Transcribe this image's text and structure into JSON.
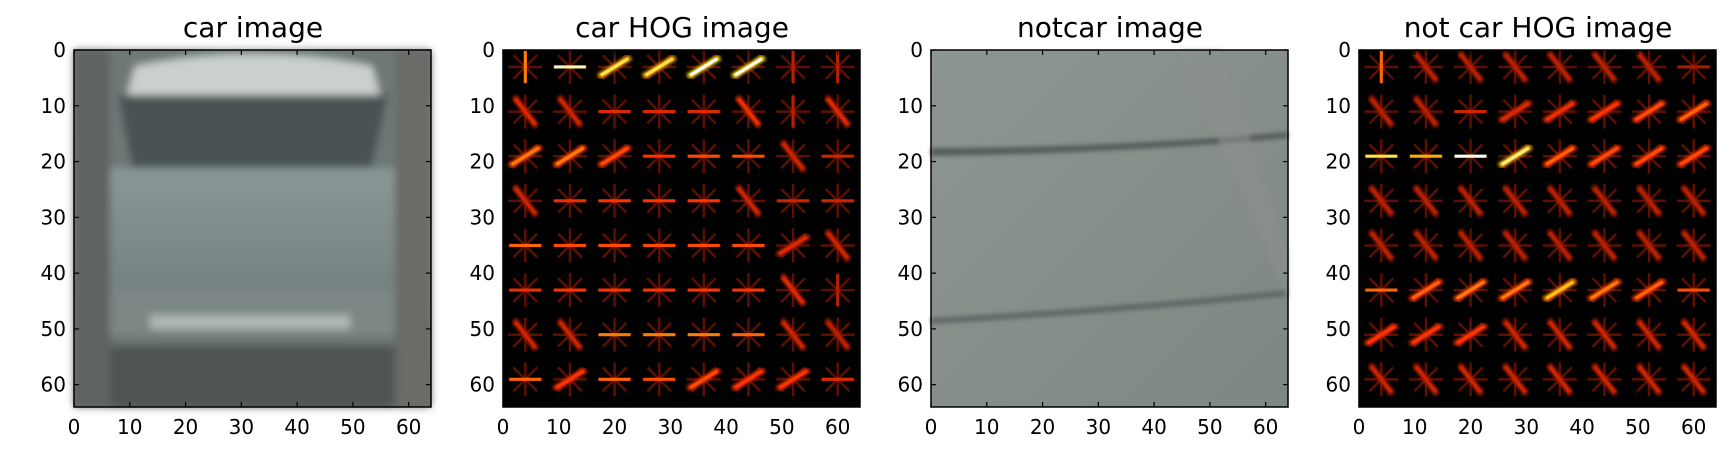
{
  "chart_data": [
    {
      "type": "image",
      "title": "car image",
      "content": "car-photo",
      "xlim": [
        0,
        64
      ],
      "ylim": [
        64,
        0
      ],
      "xticks": [
        0,
        10,
        20,
        30,
        40,
        50,
        60
      ],
      "yticks": [
        0,
        10,
        20,
        30,
        40,
        50,
        60
      ],
      "tick_labels": [
        "0",
        "10",
        "20",
        "30",
        "40",
        "50",
        "60"
      ]
    },
    {
      "type": "heatmap",
      "title": "car HOG image",
      "content": "hog",
      "colormap": "hot",
      "hog_pattern": [
        [
          0,
          1,
          2,
          2,
          2,
          2,
          0,
          0
        ],
        [
          3,
          3,
          1,
          1,
          1,
          3,
          0,
          3
        ],
        [
          2,
          2,
          2,
          1,
          1,
          1,
          3,
          1
        ],
        [
          3,
          1,
          1,
          1,
          1,
          3,
          1,
          1
        ],
        [
          1,
          1,
          1,
          1,
          1,
          1,
          2,
          3
        ],
        [
          1,
          1,
          1,
          1,
          1,
          1,
          3,
          0
        ],
        [
          3,
          3,
          1,
          1,
          1,
          1,
          3,
          3
        ],
        [
          1,
          2,
          1,
          1,
          2,
          2,
          2,
          1
        ]
      ],
      "hog_strength": [
        [
          0.6,
          0.95,
          0.85,
          0.85,
          1.0,
          1.0,
          0.25,
          0.25
        ],
        [
          0.35,
          0.3,
          0.35,
          0.35,
          0.35,
          0.4,
          0.25,
          0.35
        ],
        [
          0.6,
          0.6,
          0.5,
          0.45,
          0.5,
          0.5,
          0.3,
          0.3
        ],
        [
          0.3,
          0.4,
          0.45,
          0.45,
          0.45,
          0.3,
          0.3,
          0.3
        ],
        [
          0.55,
          0.5,
          0.5,
          0.5,
          0.5,
          0.5,
          0.35,
          0.3
        ],
        [
          0.4,
          0.45,
          0.45,
          0.45,
          0.45,
          0.45,
          0.35,
          0.25
        ],
        [
          0.3,
          0.3,
          0.6,
          0.6,
          0.6,
          0.55,
          0.3,
          0.25
        ],
        [
          0.55,
          0.45,
          0.55,
          0.5,
          0.5,
          0.45,
          0.45,
          0.35
        ]
      ],
      "xlim": [
        0,
        64
      ],
      "ylim": [
        64,
        0
      ],
      "xticks": [
        0,
        10,
        20,
        30,
        40,
        50,
        60
      ],
      "yticks": [
        0,
        10,
        20,
        30,
        40,
        50,
        60
      ],
      "tick_labels": [
        "0",
        "10",
        "20",
        "30",
        "40",
        "50",
        "60"
      ]
    },
    {
      "type": "image",
      "title": "notcar image",
      "content": "road-photo",
      "xlim": [
        0,
        64
      ],
      "ylim": [
        64,
        0
      ],
      "xticks": [
        0,
        10,
        20,
        30,
        40,
        50,
        60
      ],
      "yticks": [
        0,
        10,
        20,
        30,
        40,
        50,
        60
      ],
      "tick_labels": [
        "0",
        "10",
        "20",
        "30",
        "40",
        "50",
        "60"
      ]
    },
    {
      "type": "heatmap",
      "title": "not car HOG image",
      "content": "hog",
      "colormap": "hot",
      "hog_pattern": [
        [
          0,
          3,
          3,
          3,
          3,
          3,
          3,
          1
        ],
        [
          3,
          3,
          1,
          2,
          2,
          2,
          2,
          2
        ],
        [
          1,
          1,
          1,
          2,
          2,
          2,
          2,
          2
        ],
        [
          3,
          3,
          3,
          3,
          3,
          3,
          3,
          3
        ],
        [
          3,
          3,
          3,
          3,
          3,
          3,
          3,
          3
        ],
        [
          1,
          2,
          2,
          2,
          2,
          2,
          2,
          1
        ],
        [
          2,
          2,
          2,
          3,
          3,
          3,
          3,
          3
        ],
        [
          3,
          3,
          3,
          3,
          3,
          3,
          3,
          3
        ]
      ],
      "hog_strength": [
        [
          0.55,
          0.25,
          0.25,
          0.25,
          0.25,
          0.25,
          0.25,
          0.2
        ],
        [
          0.25,
          0.25,
          0.3,
          0.35,
          0.4,
          0.45,
          0.5,
          0.55
        ],
        [
          0.85,
          0.7,
          1.0,
          0.9,
          0.55,
          0.5,
          0.5,
          0.5
        ],
        [
          0.25,
          0.25,
          0.25,
          0.25,
          0.25,
          0.25,
          0.25,
          0.25
        ],
        [
          0.25,
          0.25,
          0.25,
          0.25,
          0.25,
          0.25,
          0.25,
          0.25
        ],
        [
          0.55,
          0.55,
          0.6,
          0.6,
          0.75,
          0.6,
          0.55,
          0.5
        ],
        [
          0.45,
          0.45,
          0.45,
          0.3,
          0.3,
          0.3,
          0.3,
          0.3
        ],
        [
          0.3,
          0.3,
          0.3,
          0.3,
          0.3,
          0.3,
          0.3,
          0.3
        ]
      ],
      "xlim": [
        0,
        64
      ],
      "ylim": [
        64,
        0
      ],
      "xticks": [
        0,
        10,
        20,
        30,
        40,
        50,
        60
      ],
      "yticks": [
        0,
        10,
        20,
        30,
        40,
        50,
        60
      ],
      "tick_labels": [
        "0",
        "10",
        "20",
        "30",
        "40",
        "50",
        "60"
      ]
    }
  ]
}
